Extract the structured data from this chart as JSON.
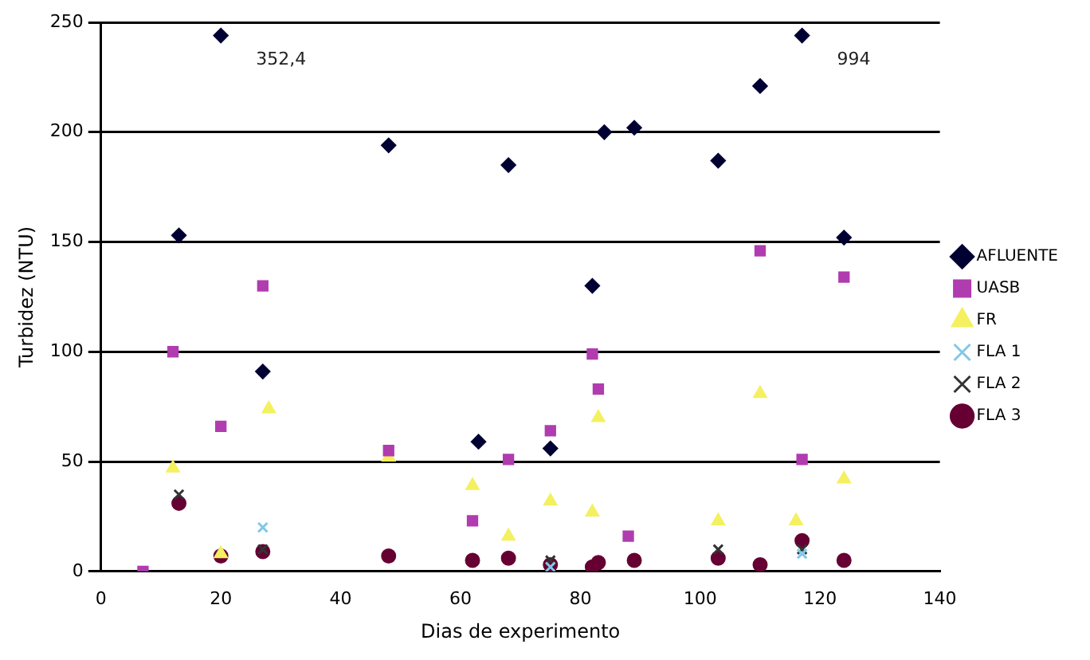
{
  "chart_data": {
    "type": "scatter",
    "xlabel": "Dias de experimento",
    "ylabel": "Turbidez (NTU)",
    "xlim": [
      0,
      140
    ],
    "ylim": [
      0,
      250
    ],
    "xticks": [
      0,
      20,
      40,
      60,
      80,
      100,
      120,
      140
    ],
    "yticks": [
      0,
      50,
      100,
      150,
      200,
      250
    ],
    "grid": "y",
    "legend": "right",
    "annotations": [
      {
        "text": "352,4",
        "x": 20,
        "y": 244
      },
      {
        "text": "994",
        "x": 117,
        "y": 244
      }
    ],
    "series": [
      {
        "name": "AFLUENTE",
        "color": "#000033",
        "marker": "diamond",
        "x": [
          13,
          20,
          27,
          48,
          63,
          68,
          75,
          82,
          84,
          89,
          103,
          110,
          117,
          124
        ],
        "values": [
          153,
          244,
          91,
          194,
          59,
          185,
          56,
          130,
          200,
          202,
          187,
          221,
          244,
          152
        ]
      },
      {
        "name": "UASB",
        "color": "#b03cb0",
        "marker": "square",
        "x": [
          7,
          12,
          20,
          27,
          48,
          62,
          68,
          75,
          82,
          83,
          88,
          110,
          117,
          124
        ],
        "values": [
          0,
          100,
          66,
          130,
          55,
          23,
          51,
          64,
          99,
          83,
          16,
          146,
          51,
          134
        ]
      },
      {
        "name": "FR",
        "color": "#f4f060",
        "marker": "triangle",
        "x": [
          12,
          20,
          28,
          48,
          62,
          68,
          75,
          82,
          83,
          103,
          110,
          116,
          124
        ],
        "values": [
          47,
          8,
          74,
          52,
          39,
          16,
          32,
          27,
          70,
          23,
          81,
          23,
          42
        ]
      },
      {
        "name": "FLA 1",
        "color": "#80c8e8",
        "marker": "cross",
        "x": [
          27,
          75,
          117
        ],
        "values": [
          20,
          2,
          8
        ]
      },
      {
        "name": "FLA 2",
        "color": "#333333",
        "marker": "cross",
        "x": [
          13,
          27,
          75,
          103,
          117
        ],
        "values": [
          35,
          10,
          5,
          10,
          10
        ]
      },
      {
        "name": "FLA 3",
        "color": "#660033",
        "marker": "circle",
        "x": [
          13,
          20,
          27,
          48,
          62,
          68,
          75,
          82,
          83,
          89,
          103,
          110,
          117,
          124
        ],
        "values": [
          31,
          7,
          9,
          7,
          5,
          6,
          3,
          2,
          4,
          5,
          6,
          3,
          14,
          5
        ]
      }
    ]
  }
}
